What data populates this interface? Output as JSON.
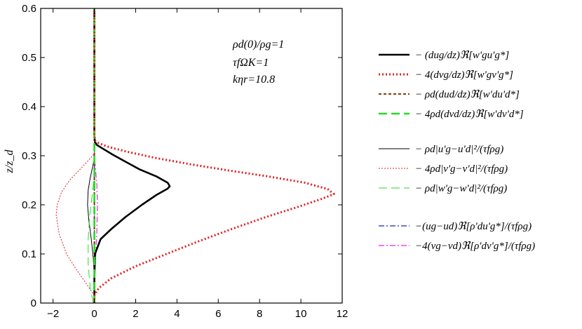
{
  "chart_data": {
    "type": "line",
    "xlabel": "",
    "ylabel": "z/z_d",
    "xlim": [
      -2.6,
      12
    ],
    "ylim": [
      0,
      0.6
    ],
    "xticks": [
      "−2",
      "0",
      "2",
      "4",
      "6",
      "8",
      "10",
      "12"
    ],
    "xtick_values": [
      -2,
      0,
      2,
      4,
      6,
      8,
      10,
      12
    ],
    "yticks": [
      "0",
      "0.1",
      "0.2",
      "0.3",
      "0.4",
      "0.5",
      "0.6"
    ],
    "ytick_values": [
      0,
      0.1,
      0.2,
      0.3,
      0.4,
      0.5,
      0.6
    ],
    "annotations": [
      "ρd(0)/ρg=1",
      "τfΩK=1",
      "kηr=10.8"
    ],
    "series": [
      {
        "name": "− (dug/dz)ℜ[w'gu'g*]",
        "color": "#000000",
        "style": "solid",
        "width": 2.6,
        "points": [
          [
            0,
            0
          ],
          [
            0,
            0.05
          ],
          [
            0.03,
            0.1
          ],
          [
            0.3,
            0.13
          ],
          [
            0.8,
            0.15
          ],
          [
            1.5,
            0.175
          ],
          [
            2.3,
            0.2
          ],
          [
            3.0,
            0.22
          ],
          [
            3.55,
            0.233
          ],
          [
            3.65,
            0.238
          ],
          [
            3.55,
            0.245
          ],
          [
            3.0,
            0.258
          ],
          [
            2.2,
            0.272
          ],
          [
            1.5,
            0.288
          ],
          [
            0.9,
            0.302
          ],
          [
            0.35,
            0.316
          ],
          [
            0.12,
            0.322
          ],
          [
            0.03,
            0.328
          ],
          [
            0,
            0.34
          ],
          [
            0,
            0.6
          ]
        ]
      },
      {
        "name": "− 4(dvg/dz)ℜ[w'gv'g*]",
        "color": "#e02020",
        "style": "dotted",
        "width": 3,
        "points": [
          [
            0,
            0
          ],
          [
            0,
            0.015
          ],
          [
            0.2,
            0.03
          ],
          [
            0.8,
            0.05
          ],
          [
            2.0,
            0.075
          ],
          [
            3.5,
            0.1
          ],
          [
            5.0,
            0.125
          ],
          [
            6.6,
            0.15
          ],
          [
            8.3,
            0.175
          ],
          [
            9.8,
            0.195
          ],
          [
            11.0,
            0.212
          ],
          [
            11.6,
            0.222
          ],
          [
            11.3,
            0.232
          ],
          [
            10.2,
            0.245
          ],
          [
            8.4,
            0.258
          ],
          [
            6.5,
            0.27
          ],
          [
            4.6,
            0.283
          ],
          [
            2.9,
            0.296
          ],
          [
            1.5,
            0.309
          ],
          [
            0.6,
            0.319
          ],
          [
            0.2,
            0.326
          ],
          [
            0.05,
            0.33
          ],
          [
            0,
            0.34
          ],
          [
            0,
            0.6
          ]
        ]
      },
      {
        "name": "− ρd(dud/dz)ℜ[w'du'd*]",
        "color": "#8b4513",
        "style": "short-dash",
        "width": 2.2,
        "points": [
          [
            0,
            0
          ],
          [
            0,
            0.6
          ]
        ]
      },
      {
        "name": "− 4ρd(dvd/dz)ℜ[w'dv'd*]",
        "color": "#22dd22",
        "style": "long-dash",
        "width": 2.6,
        "points": [
          [
            0,
            0
          ],
          [
            0,
            0.6
          ]
        ]
      },
      {
        "name": "− ρd|u'g−u'd|²/(τfρg)",
        "color": "#000000",
        "style": "solid",
        "width": 1,
        "points": [
          [
            0,
            0.05
          ],
          [
            -0.05,
            0.09
          ],
          [
            -0.15,
            0.13
          ],
          [
            -0.27,
            0.17
          ],
          [
            -0.33,
            0.2
          ],
          [
            -0.3,
            0.23
          ],
          [
            -0.2,
            0.255
          ],
          [
            -0.08,
            0.278
          ],
          [
            -0.02,
            0.29
          ],
          [
            0,
            0.295
          ],
          [
            0,
            0.6
          ]
        ]
      },
      {
        "name": "− 4ρd|v'g−v'd|²/(τfρg)",
        "color": "#e02020",
        "style": "fine-dot",
        "width": 1,
        "points": [
          [
            0,
            0.015
          ],
          [
            -0.4,
            0.04
          ],
          [
            -0.9,
            0.07
          ],
          [
            -1.35,
            0.1
          ],
          [
            -1.7,
            0.14
          ],
          [
            -1.85,
            0.18
          ],
          [
            -1.8,
            0.2
          ],
          [
            -1.6,
            0.225
          ],
          [
            -1.2,
            0.25
          ],
          [
            -0.7,
            0.272
          ],
          [
            -0.3,
            0.29
          ],
          [
            -0.08,
            0.3
          ],
          [
            0,
            0.305
          ],
          [
            0,
            0.6
          ]
        ]
      },
      {
        "name": "− ρd|w'g−w'd|²/(τfρg)",
        "color": "#22dd22",
        "style": "long-dash",
        "width": 1,
        "points": [
          [
            -0.05,
            0
          ],
          [
            -0.2,
            0.03
          ],
          [
            -0.3,
            0.08
          ],
          [
            -0.3,
            0.13
          ],
          [
            -0.22,
            0.18
          ],
          [
            -0.1,
            0.22
          ],
          [
            -0.03,
            0.25
          ],
          [
            0,
            0.27
          ],
          [
            0,
            0.6
          ]
        ]
      },
      {
        "name": "−(ug−ud)ℜ[ρ'du'g*]/(τfρg)",
        "color": "#2222cc",
        "style": "dash-dot",
        "width": 1.2,
        "points": [
          [
            0,
            0
          ],
          [
            0,
            0.6
          ]
        ]
      },
      {
        "name": "−4(vg−vd)ℜ[ρ'dv'g*]/(τfρg)",
        "color": "#ee22ee",
        "style": "dash-dot",
        "width": 1.2,
        "points": [
          [
            0.02,
            0.05
          ],
          [
            0.07,
            0.1
          ],
          [
            0.12,
            0.15
          ],
          [
            0.15,
            0.2
          ],
          [
            0.12,
            0.24
          ],
          [
            0.06,
            0.27
          ],
          [
            0.02,
            0.29
          ],
          [
            0,
            0.3
          ],
          [
            0,
            0.6
          ]
        ]
      }
    ]
  }
}
